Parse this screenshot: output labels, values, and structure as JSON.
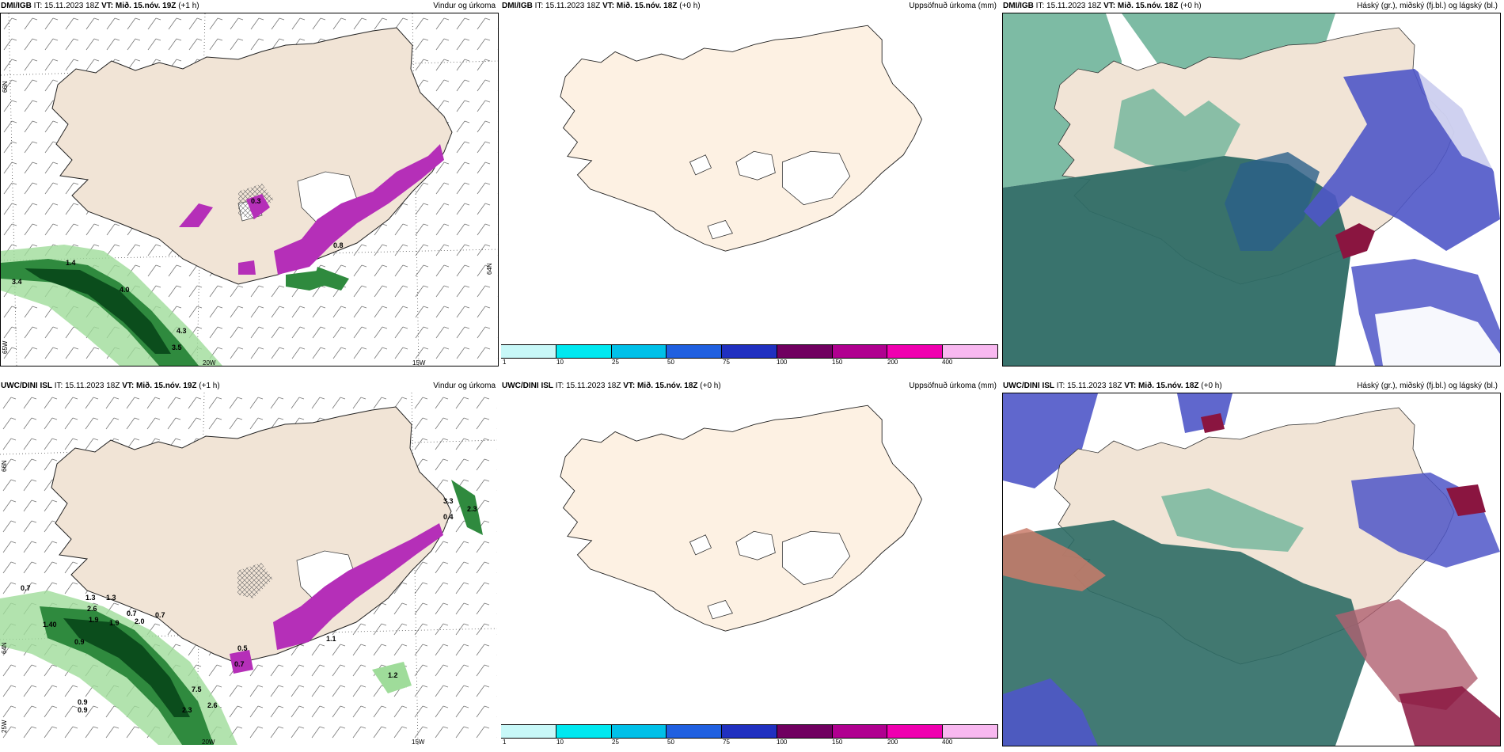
{
  "panels": [
    {
      "id": "top-left",
      "source": "DMI/IGB",
      "it_label": "IT:",
      "it_value": "15.11.2023 18Z",
      "vt_label": "VT:",
      "vt_value": "Mið. 15.nóv. 19Z",
      "lead": "(+1 h)",
      "field": "Vindur og úrkoma",
      "lat_labels": [
        "66N",
        "64N",
        "65W"
      ],
      "lon_labels": [
        "20W",
        "15W"
      ],
      "values": [
        "1.4",
        "3.4",
        "4.0",
        "4.3",
        "3.5",
        "0.3",
        "0.8"
      ]
    },
    {
      "id": "top-middle",
      "source": "DMI/IGB",
      "it_label": "IT:",
      "it_value": "15.11.2023 18Z",
      "vt_label": "VT:",
      "vt_value": "Mið. 15.nóv. 18Z",
      "lead": "(+0 h)",
      "field": "Uppsöfnuð úrkoma (mm)"
    },
    {
      "id": "top-right",
      "source": "DMI/IGB",
      "it_label": "IT:",
      "it_value": "15.11.2023 18Z",
      "vt_label": "VT:",
      "vt_value": "Mið. 15.nóv. 18Z",
      "lead": "(+0 h)",
      "field": "Háský (gr.), miðský (fj.bl.) og lágský (bl.)"
    },
    {
      "id": "bottom-left",
      "source": "UWC/DINI ISL",
      "it_label": "IT:",
      "it_value": "15.11.2023 18Z",
      "vt_label": "VT:",
      "vt_value": "Mið. 15.nóv. 19Z",
      "lead": "(+1 h)",
      "field": "Vindur og úrkoma",
      "lat_labels": [
        "66N",
        "64N",
        "25W"
      ],
      "lon_labels": [
        "20W",
        "15W"
      ],
      "values": [
        "0.7",
        "1.3",
        "1.3",
        "2.6",
        "1.9",
        "1.9",
        "2.0",
        "0.7",
        "0.7",
        "1.40",
        "0.9",
        "7.5",
        "2.6",
        "2.3",
        "0.9",
        "0.9",
        "1.1",
        "1.2",
        "0.5",
        "0.7",
        "2.3",
        "3.3",
        "0.4"
      ]
    },
    {
      "id": "bottom-middle",
      "source": "UWC/DINI ISL",
      "it_label": "IT:",
      "it_value": "15.11.2023 18Z",
      "vt_label": "VT:",
      "vt_value": "Mið. 15.nóv. 18Z",
      "lead": "(+0 h)",
      "field": "Uppsöfnuð úrkoma (mm)"
    },
    {
      "id": "bottom-right",
      "source": "UWC/DINI ISL",
      "it_label": "IT:",
      "it_value": "15.11.2023 18Z",
      "vt_label": "VT:",
      "vt_value": "Mið. 15.nóv. 18Z",
      "lead": "(+0 h)",
      "field": "Háský (gr.), miðský (fj.bl.) og lágský (bl.)"
    }
  ],
  "colorbar": {
    "labels": [
      "1",
      "10",
      "25",
      "50",
      "75",
      "100",
      "150",
      "200",
      "400"
    ],
    "colors": [
      "#c8f8f8",
      "#00e8f0",
      "#00c0e8",
      "#2060e0",
      "#2030c0",
      "#700060",
      "#b00090",
      "#f000b0",
      "#f8b8f0"
    ]
  },
  "colors": {
    "land": "#f1e4d6",
    "land_light": "#fdf1e3",
    "precip_green": "#2f8a3e",
    "precip_dark": "#0b4d1c",
    "precip_magenta": "#b52fb8",
    "high_cloud": "#6fb49a",
    "mid_cloud": "#2e6b65",
    "low_cloud": "#4f56c8",
    "dark_red": "#8a1540"
  }
}
